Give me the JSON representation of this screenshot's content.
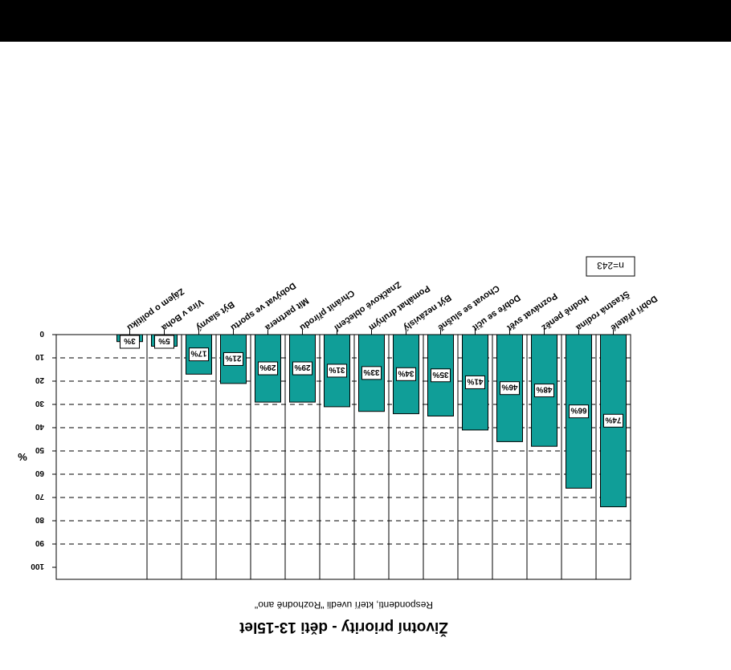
{
  "chart_data": {
    "type": "bar",
    "title": "Životní priority - děti 13-15let",
    "subtitle": "Respondenti, kteří uvedli \"Rozhodně ano\"",
    "ylabel": "%",
    "note": "n=243",
    "ylim": [
      0,
      100
    ],
    "yticks": [
      0,
      10,
      20,
      30,
      40,
      50,
      60,
      70,
      80,
      90,
      100
    ],
    "grid": true,
    "bar_color": "#109e98",
    "categories": [
      "Dobří přátelé",
      "Šťastná rodina",
      "Hodně peněz",
      "Poznávat svět",
      "Dobře se učit",
      "Chovat se slušně",
      "Být nezávislý",
      "Pomáhat druhým",
      "Značkové oblečení",
      "Chránit přírodu",
      "Mít partnera",
      "Dobývat ve sportu",
      "Být slavný",
      "Víra v Boha",
      "Zájem o politiku"
    ],
    "values": [
      74,
      66,
      48,
      46,
      41,
      35,
      34,
      33,
      31,
      29,
      29,
      21,
      17,
      5,
      3
    ],
    "value_labels": [
      "74%",
      "66%",
      "48%",
      "46%",
      "41%",
      "35%",
      "34%",
      "33%",
      "31%",
      "29%",
      "29%",
      "21%",
      "17%",
      "5%",
      "3%"
    ]
  }
}
